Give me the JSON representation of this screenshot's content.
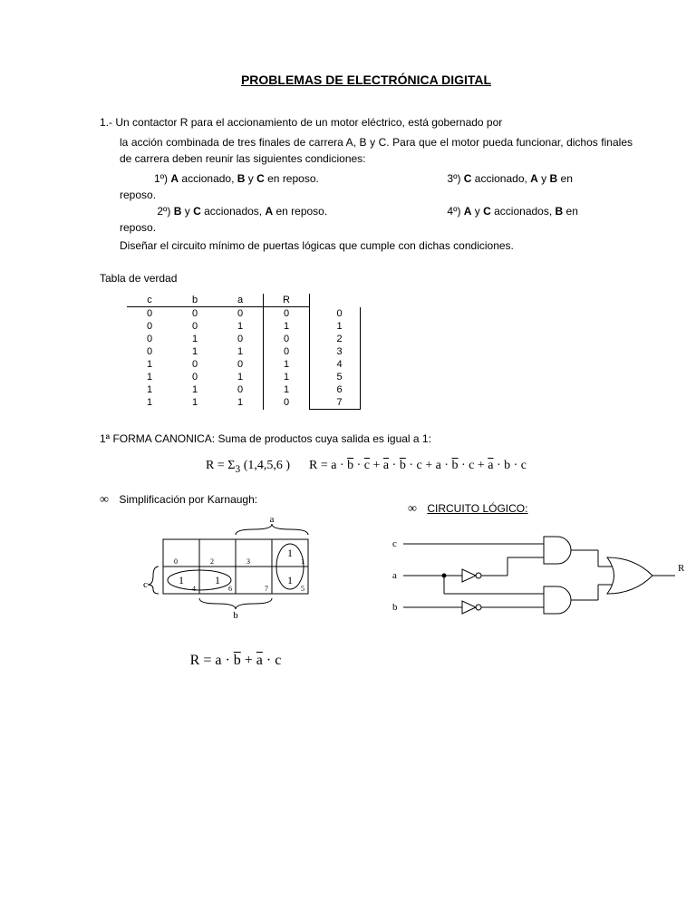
{
  "title": "PROBLEMAS DE ELECTRÓNICA DIGITAL",
  "problem": {
    "num": "1.-",
    "text_l1": "Un contactor R para el accionamiento de un motor eléctrico, está gobernado por",
    "text_l2": "la acción combinada de tres finales de carrera A, B y C. Para que el motor pueda funcionar, dichos finales de carrera deben reunir las siguientes condiciones:",
    "c1a": "1º) ",
    "c1b": "A",
    "c1c": " accionado, ",
    "c1d": "B",
    "c1e": " y ",
    "c1f": "C",
    "c1g": " en reposo.",
    "c3a": "3º)  ",
    "c3b": "C",
    "c3c": " accionado, ",
    "c3d": "A",
    "c3e": " y ",
    "c3f": "B",
    "c3g": " en",
    "c3trail": "reposo.",
    "c2a": "2º) ",
    "c2b": "B",
    "c2c": " y ",
    "c2d": "C",
    "c2e": " accionados, ",
    "c2f": "A",
    "c2g": " en reposo.",
    "c4a": "4º)  ",
    "c4b": "A",
    "c4c": " y ",
    "c4d": "C",
    "c4e": " accionados, ",
    "c4f": "B",
    "c4g": " en",
    "c4trail": "reposo.",
    "design": "Diseñar el circuito mínimo de puertas lógicas que cumple con dichas condiciones."
  },
  "truth": {
    "label": "Tabla de verdad",
    "headers": [
      "c",
      "b",
      "a",
      "R"
    ],
    "rows": [
      [
        "0",
        "0",
        "0",
        "0",
        "0"
      ],
      [
        "0",
        "0",
        "1",
        "1",
        "1"
      ],
      [
        "0",
        "1",
        "0",
        "0",
        "2"
      ],
      [
        "0",
        "1",
        "1",
        "0",
        "3"
      ],
      [
        "1",
        "0",
        "0",
        "1",
        "4"
      ],
      [
        "1",
        "0",
        "1",
        "1",
        "5"
      ],
      [
        "1",
        "1",
        "0",
        "1",
        "6"
      ],
      [
        "1",
        "1",
        "1",
        "0",
        "7"
      ]
    ]
  },
  "canonical": {
    "label": "1ª FORMA CANONICA: Suma de productos cuya salida es igual a 1:",
    "eq_prefix": "R  =  Σ",
    "eq_sub": "3",
    "eq_set": " (1,4,5,6 )     ",
    "eq_terms": "R = a · b̄ · c̄ + ā · b̄ · c + a · b̄ · c + ā · b · c"
  },
  "simp": {
    "label": "Simplificación por Karnaugh:",
    "kmap": {
      "var_a": "a",
      "var_b": "b",
      "var_c": "c",
      "cells": [
        {
          "idx": "0",
          "v": ""
        },
        {
          "idx": "2",
          "v": ""
        },
        {
          "idx": "3",
          "v": ""
        },
        {
          "idx": "1",
          "v": "1"
        },
        {
          "idx": "4",
          "v": "1"
        },
        {
          "idx": "6",
          "v": "1"
        },
        {
          "idx": "7",
          "v": ""
        },
        {
          "idx": "5",
          "v": "1"
        }
      ]
    },
    "result": "R = a · b̄ + ā · c"
  },
  "circuit": {
    "label": "CIRCUITO LÓGICO",
    "inputs": [
      "c",
      "a",
      "b"
    ],
    "output": "R"
  },
  "colors": {
    "text": "#000000",
    "bg": "#ffffff",
    "line": "#000000"
  }
}
